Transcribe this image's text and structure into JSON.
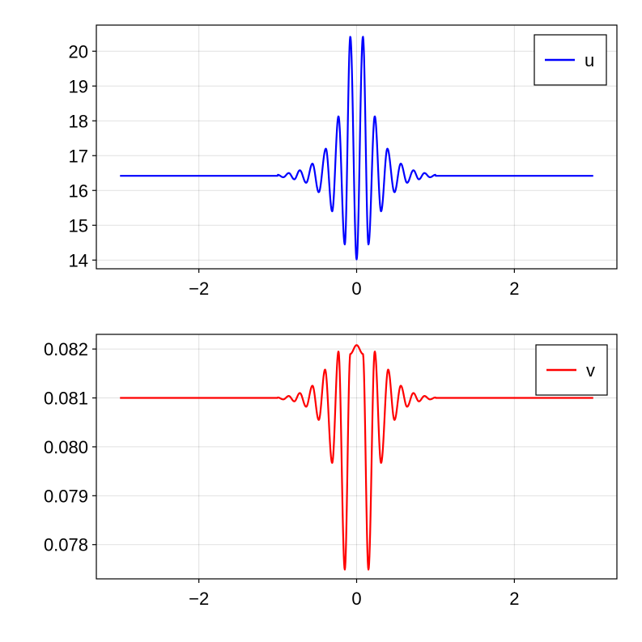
{
  "chart_data": [
    {
      "type": "line",
      "title": "",
      "xlabel": "",
      "ylabel": "",
      "xlim": [
        -3.3,
        3.3
      ],
      "ylim": [
        13.75,
        20.75
      ],
      "xticks": [
        -2,
        0,
        2
      ],
      "xtick_labels": [
        "−2",
        "0",
        "2"
      ],
      "yticks": [
        14,
        15,
        16,
        17,
        18,
        19,
        20
      ],
      "ytick_labels": [
        "14",
        "15",
        "16",
        "17",
        "18",
        "19",
        "20"
      ],
      "grid": true,
      "legend": "top-right",
      "series": [
        {
          "name": "u",
          "color": "#0000ff",
          "baseline": 16.42,
          "x_range": [
            -3,
            3
          ],
          "extrema": [
            [
              -1.0,
              16.45
            ],
            [
              -0.93,
              16.38
            ],
            [
              -0.86,
              16.5
            ],
            [
              -0.79,
              16.32
            ],
            [
              -0.72,
              16.58
            ],
            [
              -0.64,
              16.22
            ],
            [
              -0.56,
              16.77
            ],
            [
              -0.48,
              15.95
            ],
            [
              -0.39,
              17.2
            ],
            [
              -0.31,
              15.4
            ],
            [
              -0.23,
              18.13
            ],
            [
              -0.15,
              14.45
            ],
            [
              -0.08,
              20.42
            ],
            [
              0.0,
              14.02
            ],
            [
              0.08,
              20.42
            ],
            [
              0.15,
              14.45
            ],
            [
              0.23,
              18.13
            ],
            [
              0.31,
              15.4
            ],
            [
              0.39,
              17.2
            ],
            [
              0.48,
              15.95
            ],
            [
              0.56,
              16.77
            ],
            [
              0.64,
              16.22
            ],
            [
              0.72,
              16.58
            ],
            [
              0.79,
              16.32
            ],
            [
              0.86,
              16.5
            ],
            [
              0.93,
              16.38
            ],
            [
              1.0,
              16.45
            ]
          ]
        }
      ]
    },
    {
      "type": "line",
      "title": "",
      "xlabel": "",
      "ylabel": "",
      "xlim": [
        -3.3,
        3.3
      ],
      "ylim": [
        0.0773,
        0.0823
      ],
      "xticks": [
        -2,
        0,
        2
      ],
      "xtick_labels": [
        "−2",
        "0",
        "2"
      ],
      "yticks": [
        0.078,
        0.079,
        0.08,
        0.081,
        0.082
      ],
      "ytick_labels": [
        "0.078",
        "0.079",
        "0.080",
        "0.081",
        "0.082"
      ],
      "grid": true,
      "legend": "top-right",
      "series": [
        {
          "name": "v",
          "color": "#ff0000",
          "baseline": 0.081,
          "x_range": [
            -3,
            3
          ],
          "extrema": [
            [
              -1.0,
              0.08101
            ],
            [
              -0.93,
              0.08097
            ],
            [
              -0.86,
              0.08104
            ],
            [
              -0.79,
              0.08093
            ],
            [
              -0.72,
              0.0811
            ],
            [
              -0.64,
              0.08082
            ],
            [
              -0.56,
              0.08125
            ],
            [
              -0.48,
              0.08055
            ],
            [
              -0.4,
              0.08158
            ],
            [
              -0.31,
              0.07967
            ],
            [
              -0.23,
              0.08195
            ],
            [
              -0.15,
              0.07749
            ],
            [
              -0.08,
              0.0819
            ],
            [
              0.0,
              0.08208
            ],
            [
              0.08,
              0.0819
            ],
            [
              0.15,
              0.07749
            ],
            [
              0.23,
              0.08195
            ],
            [
              0.31,
              0.07967
            ],
            [
              0.4,
              0.08158
            ],
            [
              0.48,
              0.08055
            ],
            [
              0.56,
              0.08125
            ],
            [
              0.64,
              0.08082
            ],
            [
              0.72,
              0.0811
            ],
            [
              0.79,
              0.08093
            ],
            [
              0.86,
              0.08104
            ],
            [
              0.93,
              0.08097
            ],
            [
              1.0,
              0.08101
            ]
          ]
        }
      ]
    }
  ]
}
